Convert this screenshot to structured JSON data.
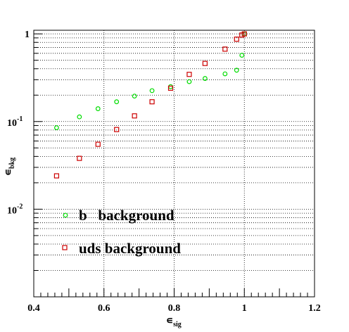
{
  "chart_data": {
    "type": "scatter",
    "xlabel_main": "∊",
    "xlabel_sub": "sig",
    "ylabel_main": "∊",
    "ylabel_sub": "bkg",
    "xlim": [
      0.4,
      1.2
    ],
    "ylim": [
      0.001,
      1.1
    ],
    "yscale": "log",
    "grid": true,
    "xticks": [
      {
        "value": 0.4,
        "label": "0.4"
      },
      {
        "value": 0.6,
        "label": "0.6"
      },
      {
        "value": 0.8,
        "label": "0.8"
      },
      {
        "value": 1.0,
        "label": "1"
      },
      {
        "value": 1.2,
        "label": "1.2"
      }
    ],
    "yticks": [
      {
        "value": 1,
        "base": "1",
        "exp": ""
      },
      {
        "value": 0.1,
        "base": "10",
        "exp": "-1"
      },
      {
        "value": 0.01,
        "base": "10",
        "exp": "-2"
      }
    ],
    "legend_position": "lower-left",
    "series": [
      {
        "name": "b   background",
        "marker": "circle",
        "color": "#00dd00",
        "x": [
          0.465,
          0.53,
          0.583,
          0.636,
          0.687,
          0.737,
          0.79,
          0.843,
          0.888,
          0.945,
          0.978,
          0.993,
          1.0
        ],
        "y": [
          0.085,
          0.113,
          0.14,
          0.168,
          0.195,
          0.225,
          0.25,
          0.285,
          0.31,
          0.35,
          0.385,
          0.57,
          1.0
        ]
      },
      {
        "name": "uds background",
        "marker": "square",
        "color": "#cc0000",
        "x": [
          0.465,
          0.53,
          0.583,
          0.636,
          0.687,
          0.737,
          0.79,
          0.843,
          0.888,
          0.945,
          0.978,
          0.993,
          1.0
        ],
        "y": [
          0.024,
          0.038,
          0.055,
          0.081,
          0.116,
          0.168,
          0.24,
          0.345,
          0.46,
          0.67,
          0.87,
          0.97,
          1.0
        ]
      }
    ]
  }
}
